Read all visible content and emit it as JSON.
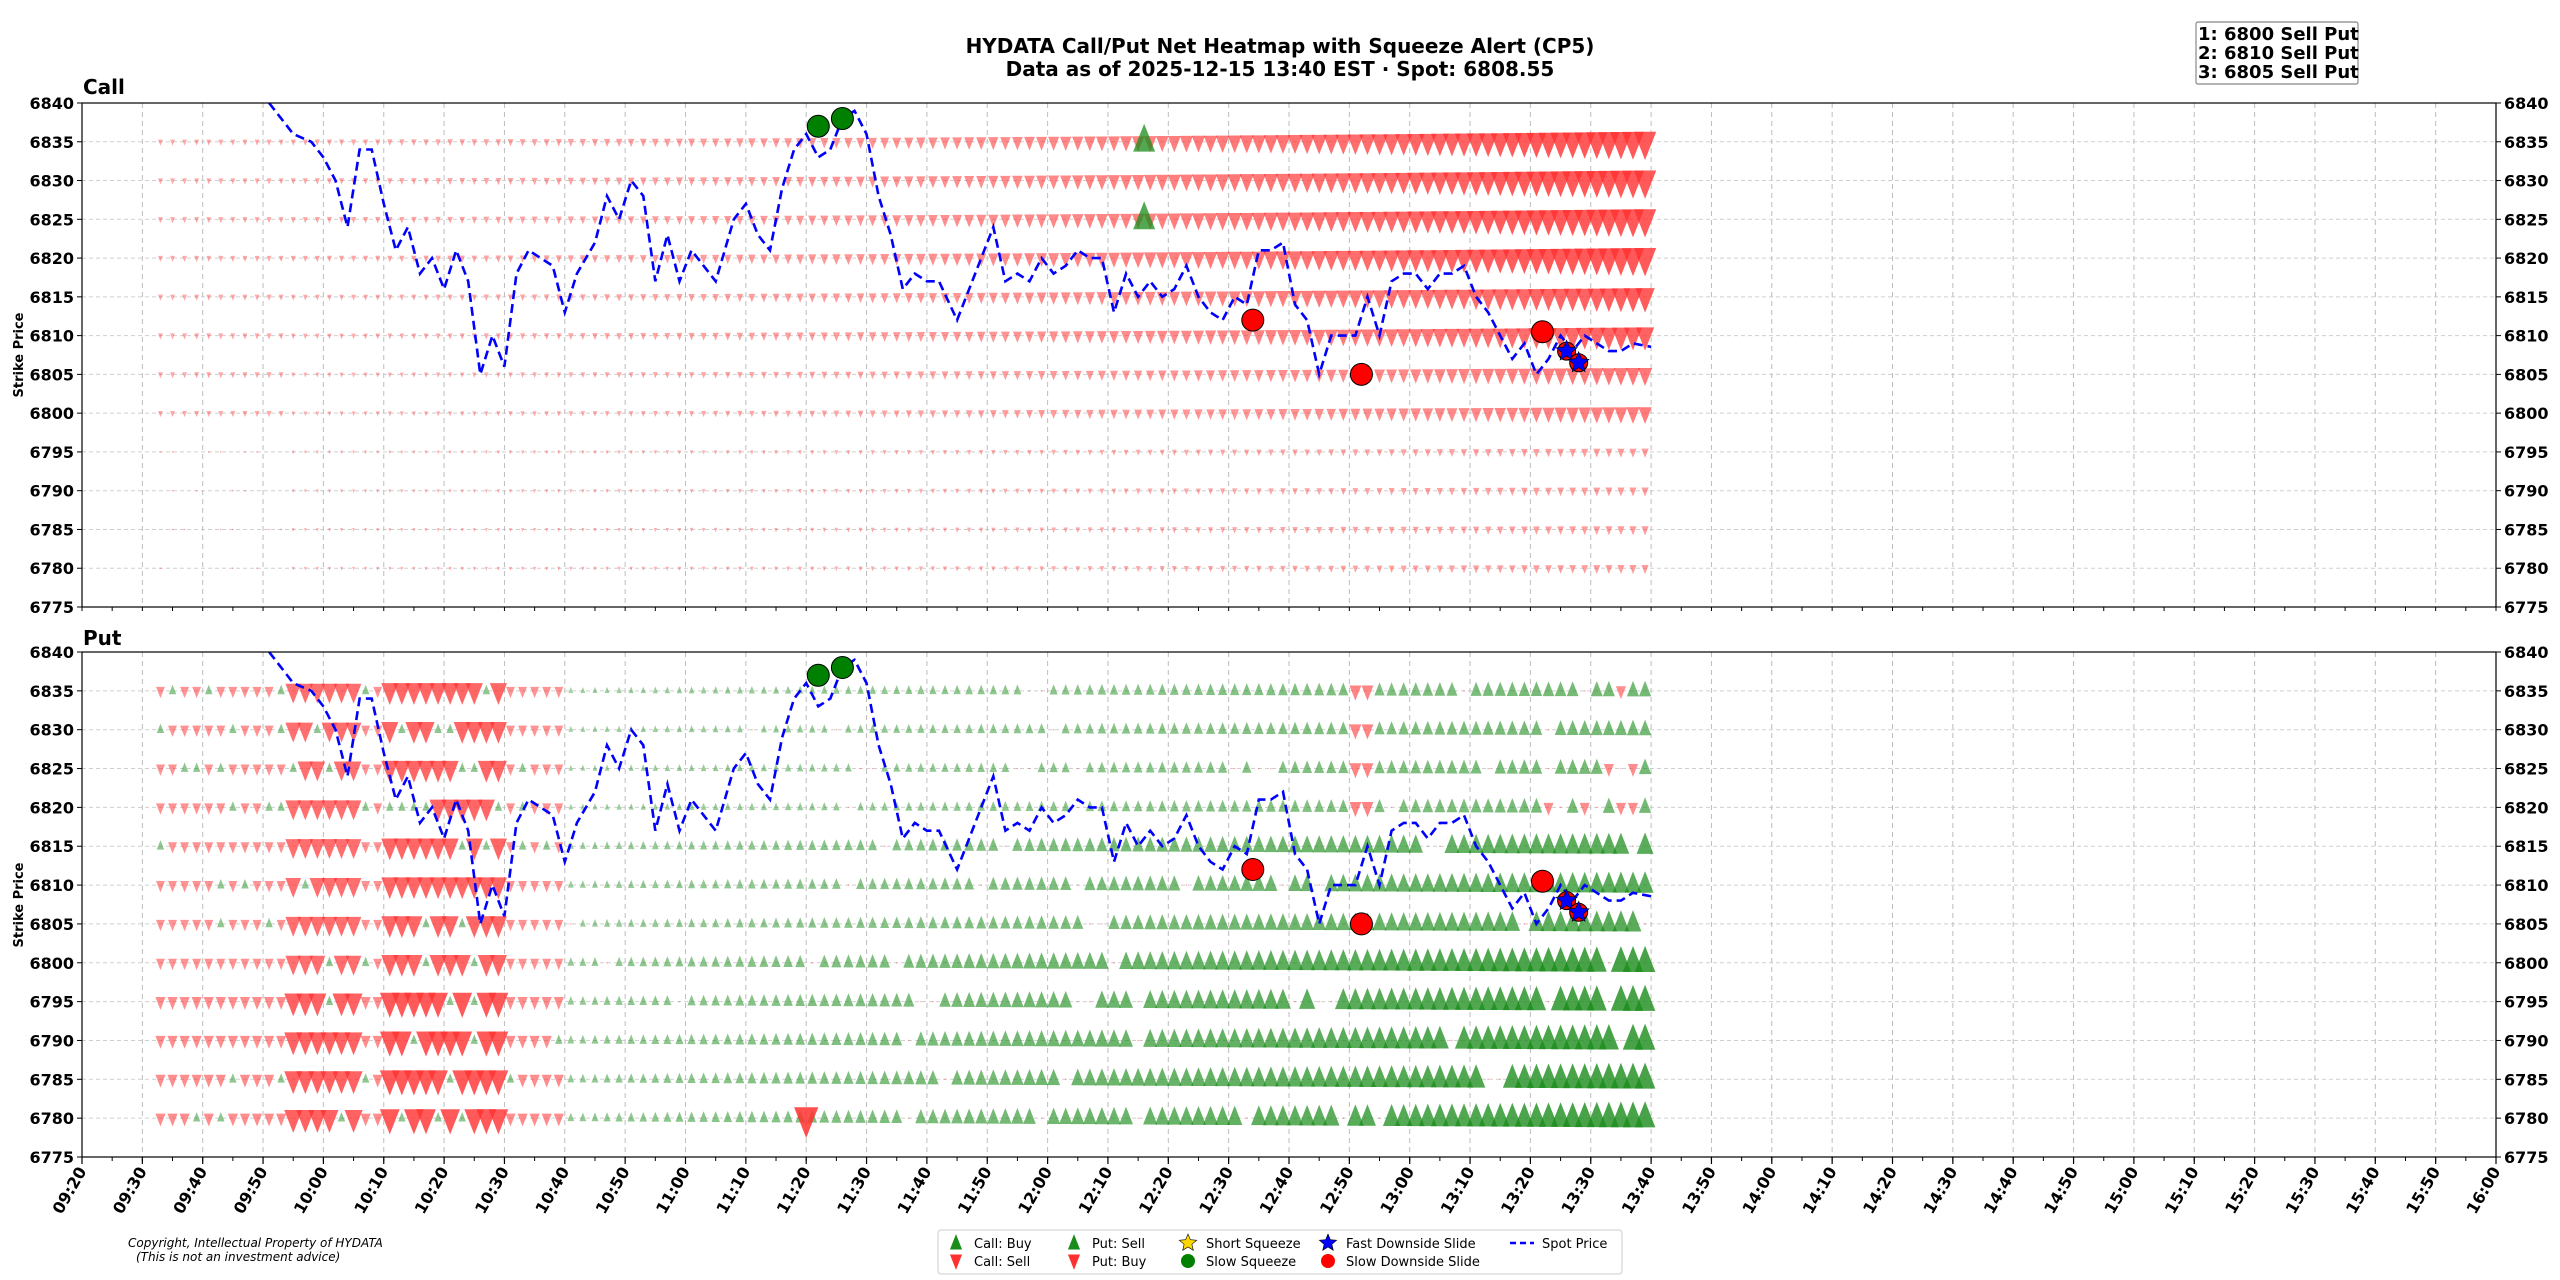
{
  "chart_data": {
    "type": "scatter",
    "title": "HYDATA Call/Put Net Heatmap with Squeeze Alert (CP5)",
    "subtitle": "Data as of 2025-12-15 13:40 EST · Spot: 6808.55",
    "ylabel": "Strike Price",
    "copyright": "Copyright, Intellectual Property of HYDATA",
    "disclaimer": "(This is not an investment advice)",
    "alerts": [
      "1: 6800 Sell Put",
      "2: 6810 Sell Put",
      "3: 6805 Sell Put"
    ],
    "xlim": [
      "09:20",
      "16:00"
    ],
    "ylim": [
      6775,
      6840
    ],
    "x_ticks": [
      "09:20",
      "09:30",
      "09:40",
      "09:50",
      "10:00",
      "10:10",
      "10:20",
      "10:30",
      "10:40",
      "10:50",
      "11:00",
      "11:10",
      "11:20",
      "11:30",
      "11:40",
      "11:50",
      "12:00",
      "12:10",
      "12:20",
      "12:30",
      "12:40",
      "12:50",
      "13:00",
      "13:10",
      "13:20",
      "13:30",
      "13:40",
      "13:50",
      "14:00",
      "14:10",
      "14:20",
      "14:30",
      "14:40",
      "14:50",
      "15:00",
      "15:10",
      "15:20",
      "15:30",
      "15:40",
      "15:50",
      "16:00"
    ],
    "y_ticks": [
      6840,
      6835,
      6830,
      6825,
      6820,
      6815,
      6810,
      6805,
      6800,
      6795,
      6790,
      6785,
      6780,
      6775
    ],
    "strikes": [
      6835,
      6830,
      6825,
      6820,
      6815,
      6810,
      6805,
      6800,
      6795,
      6790,
      6785,
      6780
    ],
    "panels": [
      "Call",
      "Put"
    ],
    "colors": {
      "buy": "#1a8c1a",
      "sell": "#ff3030",
      "spot": "#0000ff",
      "slow_squeeze": "#008000",
      "slide": "#ff0000",
      "short_squeeze": "#ffd700"
    },
    "legend": [
      {
        "label": "Call: Buy",
        "marker": "triangle-up",
        "color": "#1a8c1a"
      },
      {
        "label": "Call: Sell",
        "marker": "triangle-down",
        "color": "#ff3030"
      },
      {
        "label": "Put: Sell",
        "marker": "triangle-up",
        "color": "#1a8c1a"
      },
      {
        "label": "Put: Buy",
        "marker": "triangle-down",
        "color": "#ff3030"
      },
      {
        "label": "Short Squeeze",
        "marker": "star",
        "color": "#ffd700"
      },
      {
        "label": "Slow Squeeze",
        "marker": "circle",
        "color": "#008000"
      },
      {
        "label": "Fast Downside Slide",
        "marker": "star",
        "color": "#0000ff"
      },
      {
        "label": "Slow Downside Slide",
        "marker": "circle",
        "color": "#ff0000"
      },
      {
        "label": "Spot Price",
        "marker": "dashed-line",
        "color": "#0000ff"
      }
    ],
    "spot_series": [
      [
        "09:51",
        6840
      ],
      [
        "09:53",
        6838
      ],
      [
        "09:55",
        6836
      ],
      [
        "09:58",
        6835
      ],
      [
        "10:00",
        6833
      ],
      [
        "10:02",
        6830
      ],
      [
        "10:04",
        6824
      ],
      [
        "10:06",
        6834
      ],
      [
        "10:08",
        6834
      ],
      [
        "10:10",
        6827
      ],
      [
        "10:12",
        6821
      ],
      [
        "10:14",
        6824
      ],
      [
        "10:16",
        6818
      ],
      [
        "10:18",
        6820
      ],
      [
        "10:20",
        6816
      ],
      [
        "10:22",
        6821
      ],
      [
        "10:24",
        6817
      ],
      [
        "10:26",
        6805
      ],
      [
        "10:28",
        6810
      ],
      [
        "10:30",
        6806
      ],
      [
        "10:32",
        6818
      ],
      [
        "10:34",
        6821
      ],
      [
        "10:36",
        6820
      ],
      [
        "10:38",
        6819
      ],
      [
        "10:40",
        6813
      ],
      [
        "10:42",
        6818
      ],
      [
        "10:45",
        6822
      ],
      [
        "10:47",
        6828
      ],
      [
        "10:49",
        6825
      ],
      [
        "10:51",
        6830
      ],
      [
        "10:53",
        6828
      ],
      [
        "10:55",
        6817
      ],
      [
        "10:57",
        6823
      ],
      [
        "10:59",
        6817
      ],
      [
        "11:01",
        6821
      ],
      [
        "11:03",
        6819
      ],
      [
        "11:05",
        6817
      ],
      [
        "11:08",
        6825
      ],
      [
        "11:10",
        6827
      ],
      [
        "11:12",
        6823
      ],
      [
        "11:14",
        6821
      ],
      [
        "11:16",
        6829
      ],
      [
        "11:18",
        6834
      ],
      [
        "11:20",
        6836
      ],
      [
        "11:22",
        6833
      ],
      [
        "11:24",
        6834
      ],
      [
        "11:26",
        6838
      ],
      [
        "11:28",
        6839
      ],
      [
        "11:30",
        6836
      ],
      [
        "11:32",
        6828
      ],
      [
        "11:34",
        6823
      ],
      [
        "11:36",
        6816
      ],
      [
        "11:38",
        6818
      ],
      [
        "11:40",
        6817
      ],
      [
        "11:42",
        6817
      ],
      [
        "11:45",
        6812
      ],
      [
        "11:48",
        6818
      ],
      [
        "11:51",
        6824
      ],
      [
        "11:53",
        6817
      ],
      [
        "11:55",
        6818
      ],
      [
        "11:57",
        6817
      ],
      [
        "11:59",
        6820
      ],
      [
        "12:01",
        6818
      ],
      [
        "12:03",
        6819
      ],
      [
        "12:05",
        6821
      ],
      [
        "12:07",
        6820
      ],
      [
        "12:09",
        6820
      ],
      [
        "12:11",
        6813
      ],
      [
        "12:13",
        6818
      ],
      [
        "12:15",
        6815
      ],
      [
        "12:17",
        6817
      ],
      [
        "12:19",
        6815
      ],
      [
        "12:21",
        6816
      ],
      [
        "12:23",
        6819
      ],
      [
        "12:25",
        6815
      ],
      [
        "12:27",
        6813
      ],
      [
        "12:29",
        6812
      ],
      [
        "12:31",
        6815
      ],
      [
        "12:33",
        6814
      ],
      [
        "12:35",
        6821
      ],
      [
        "12:37",
        6821
      ],
      [
        "12:39",
        6822
      ],
      [
        "12:41",
        6814
      ],
      [
        "12:43",
        6812
      ],
      [
        "12:45",
        6805
      ],
      [
        "12:47",
        6810
      ],
      [
        "12:49",
        6810
      ],
      [
        "12:51",
        6810
      ],
      [
        "12:53",
        6815
      ],
      [
        "12:55",
        6810
      ],
      [
        "12:57",
        6817
      ],
      [
        "12:59",
        6818
      ],
      [
        "13:01",
        6818
      ],
      [
        "13:03",
        6816
      ],
      [
        "13:05",
        6818
      ],
      [
        "13:07",
        6818
      ],
      [
        "13:09",
        6819
      ],
      [
        "13:11",
        6815
      ],
      [
        "13:13",
        6813
      ],
      [
        "13:15",
        6810
      ],
      [
        "13:17",
        6807
      ],
      [
        "13:19",
        6809
      ],
      [
        "13:21",
        6805
      ],
      [
        "13:23",
        6807
      ],
      [
        "13:25",
        6810
      ],
      [
        "13:27",
        6808
      ],
      [
        "13:29",
        6810
      ],
      [
        "13:31",
        6809
      ],
      [
        "13:33",
        6808
      ],
      [
        "13:35",
        6808
      ],
      [
        "13:37",
        6809
      ],
      [
        "13:40",
        6808.55
      ]
    ],
    "slow_squeeze_events": [
      [
        "11:22",
        6837
      ],
      [
        "11:26",
        6838
      ]
    ],
    "slow_slide_events": [
      [
        "12:34",
        6812
      ],
      [
        "12:52",
        6805
      ],
      [
        "13:22",
        6810.5
      ]
    ],
    "fast_slide_events": [
      [
        "13:26",
        6808
      ],
      [
        "13:28",
        6806.5
      ]
    ]
  }
}
